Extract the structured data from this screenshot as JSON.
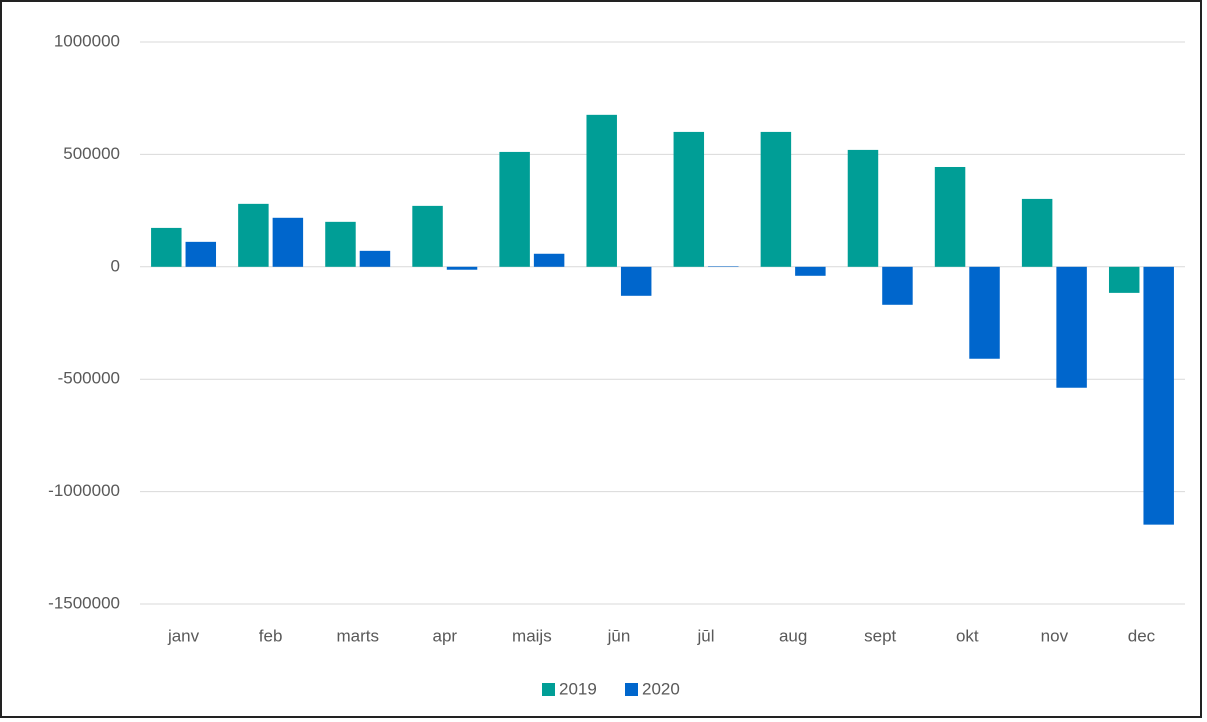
{
  "chart_data": {
    "type": "bar",
    "categories": [
      "janv",
      "feb",
      "marts",
      "apr",
      "maijs",
      "jūn",
      "jūl",
      "aug",
      "sept",
      "okt",
      "nov",
      "dec"
    ],
    "series": [
      {
        "name": "2019",
        "color": "#009e96",
        "values": [
          173000,
          280000,
          200000,
          271000,
          511000,
          676000,
          600000,
          600000,
          520000,
          444000,
          302000,
          -116000
        ]
      },
      {
        "name": "2020",
        "color": "#0066cc",
        "values": [
          111000,
          218000,
          71000,
          -13000,
          58000,
          -129000,
          2000,
          -40000,
          -169000,
          -409000,
          -538000,
          -1147000
        ]
      }
    ],
    "ylim": [
      -1500000,
      1000000
    ],
    "yticks": [
      -1500000,
      -1000000,
      -500000,
      0,
      500000,
      1000000
    ],
    "grid": true,
    "legend": "bottom"
  }
}
